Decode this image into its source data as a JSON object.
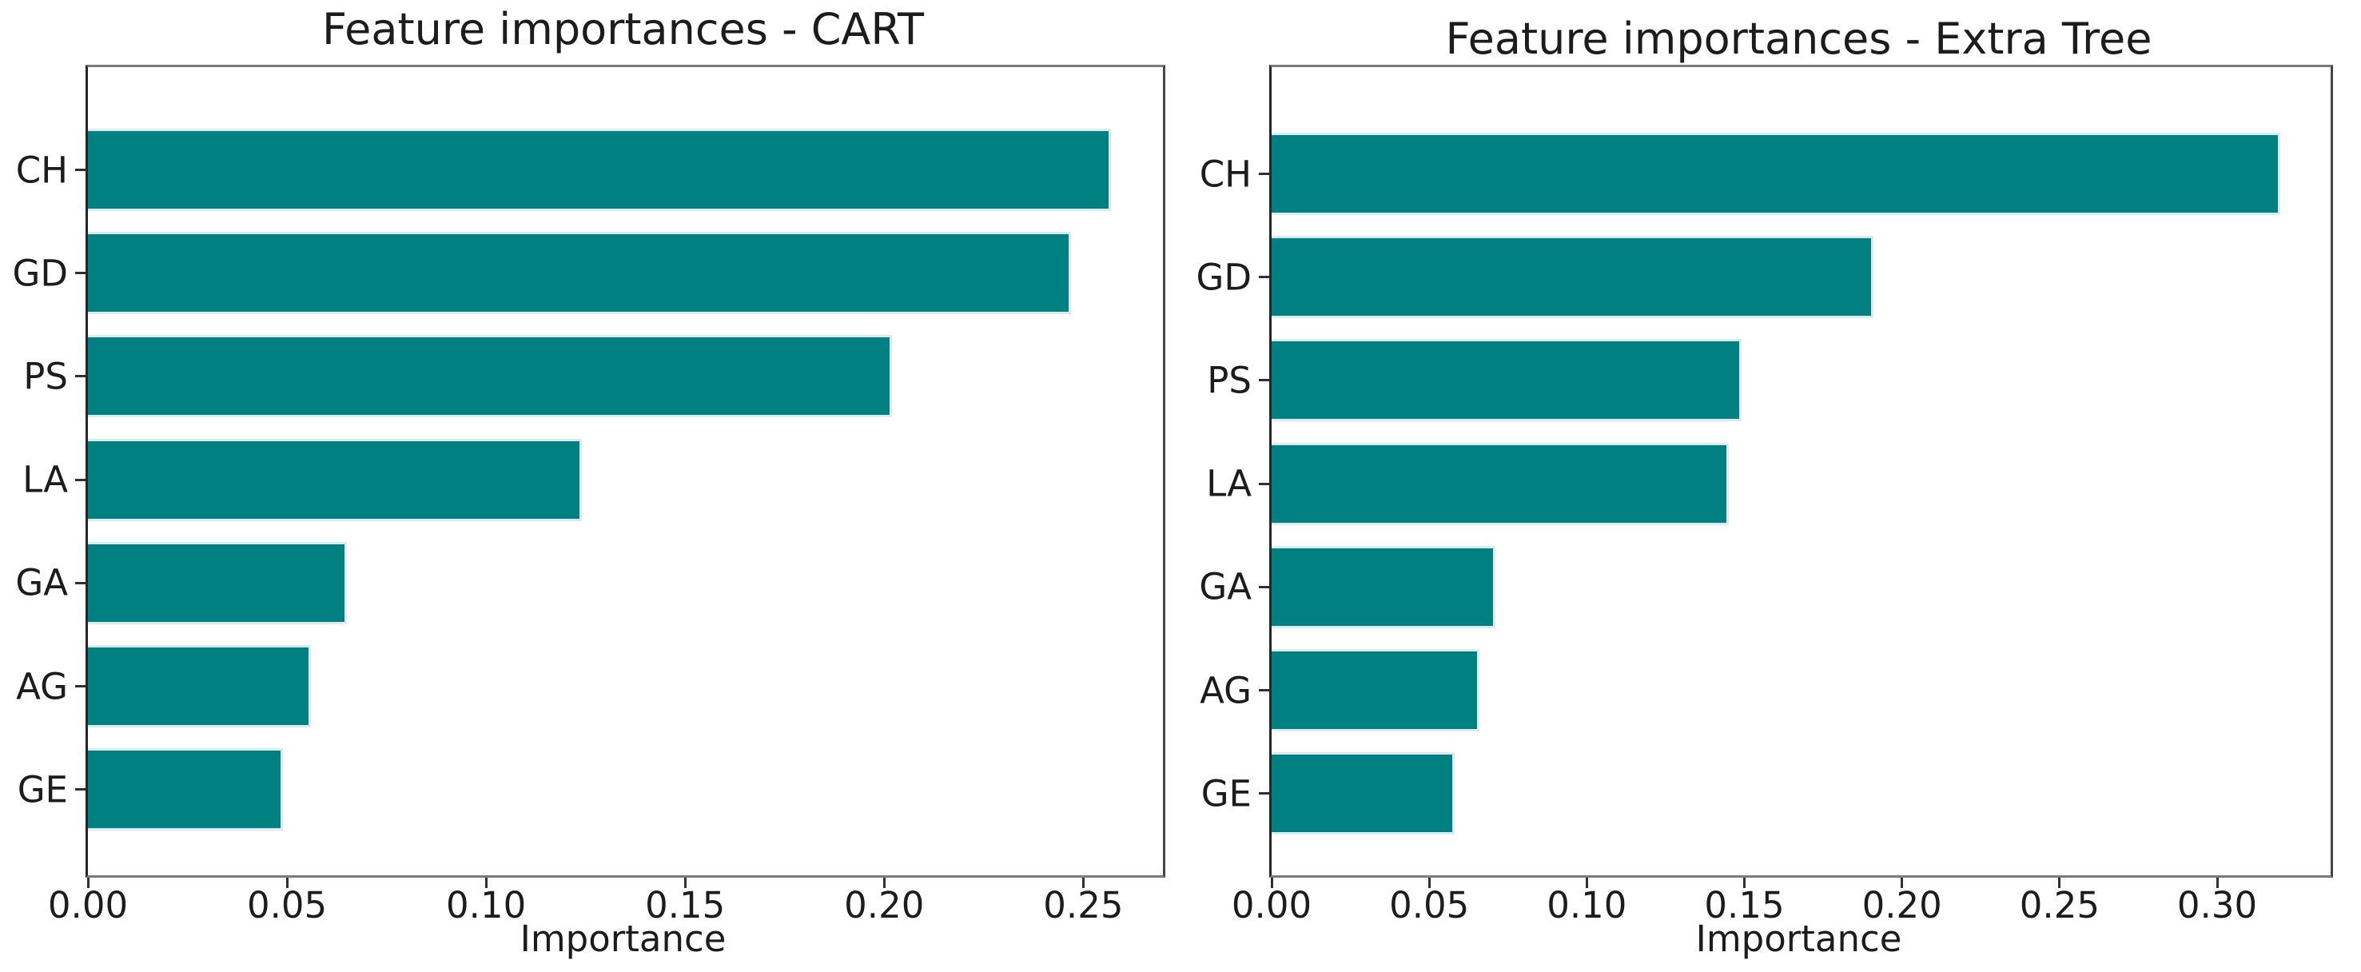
{
  "page": {
    "background": "#ffffff",
    "text_color": "#1c1c1c"
  },
  "chart_data": [
    {
      "type": "bar",
      "orientation": "horizontal",
      "title": "Feature importances - CART",
      "xlabel": "Importance",
      "categories": [
        "CH",
        "GD",
        "PS",
        "LA",
        "GA",
        "AG",
        "GE"
      ],
      "values": [
        0.257,
        0.247,
        0.202,
        0.124,
        0.065,
        0.056,
        0.049
      ],
      "xlim": [
        0,
        0.27
      ],
      "xticks": [
        0.0,
        0.05,
        0.1,
        0.15,
        0.2,
        0.25
      ],
      "xtick_labels": [
        "0.00",
        "0.05",
        "0.10",
        "0.15",
        "0.20",
        "0.25"
      ],
      "bar_color": "#008080",
      "bar_edge_color": "#dcecee",
      "grid": false
    },
    {
      "type": "bar",
      "orientation": "horizontal",
      "title": "Feature importances - Extra Tree",
      "xlabel": "Importance",
      "categories": [
        "CH",
        "GD",
        "PS",
        "LA",
        "GA",
        "AG",
        "GE"
      ],
      "values": [
        0.32,
        0.191,
        0.149,
        0.145,
        0.071,
        0.066,
        0.058
      ],
      "xlim": [
        0,
        0.336
      ],
      "xticks": [
        0.0,
        0.05,
        0.1,
        0.15,
        0.2,
        0.25,
        0.3
      ],
      "xtick_labels": [
        "0.00",
        "0.05",
        "0.10",
        "0.15",
        "0.20",
        "0.25",
        "0.30"
      ],
      "bar_color": "#008080",
      "bar_edge_color": "#dcecee",
      "grid": false
    }
  ]
}
